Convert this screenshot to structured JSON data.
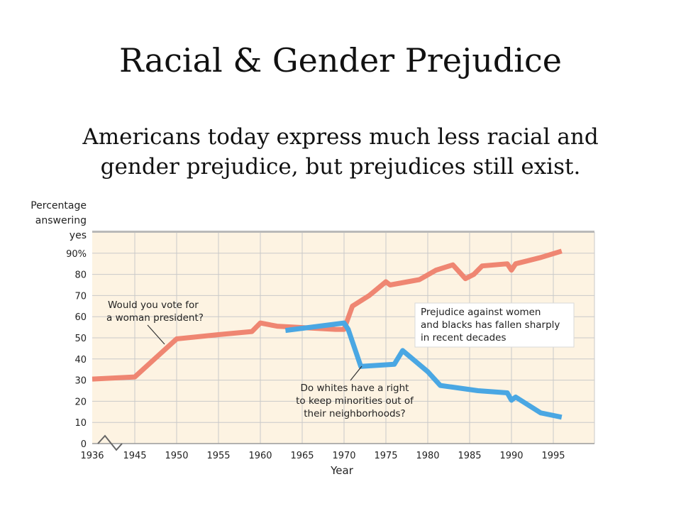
{
  "slide": {
    "title": "Racial & Gender Prejudice",
    "subtitle_lines": [
      "Americans today express much less racial and",
      "gender prejudice, but prejudices still exist."
    ]
  },
  "chart_data": {
    "type": "line",
    "ylabel_lines": [
      "Percentage",
      "answering",
      "yes"
    ],
    "xlabel": "Year",
    "x_ticks": [
      "1936",
      "1945",
      "1950",
      "1955",
      "1960",
      "1965",
      "1970",
      "1975",
      "1980",
      "1985",
      "1990",
      "1995"
    ],
    "y_ticks": [
      "0",
      "10",
      "20",
      "30",
      "40",
      "50",
      "60",
      "70",
      "80",
      "90%"
    ],
    "ylim": [
      0,
      100
    ],
    "xlim": [
      1935,
      2000
    ],
    "grid": true,
    "colors": {
      "background": "#fdf3e2",
      "grid": "#c9c9c9"
    },
    "series": [
      {
        "color": "#ef8672",
        "points": [
          [
            1936,
            30.5
          ],
          [
            1945,
            31.5
          ],
          [
            1950,
            49.5
          ],
          [
            1955,
            51.5
          ],
          [
            1959,
            53
          ],
          [
            1960,
            57
          ],
          [
            1962,
            55.5
          ],
          [
            1969,
            54
          ],
          [
            1970,
            54
          ],
          [
            1971,
            65
          ],
          [
            1973,
            70
          ],
          [
            1975,
            76.5
          ],
          [
            1975.5,
            75
          ],
          [
            1979,
            77.5
          ],
          [
            1981,
            82
          ],
          [
            1983,
            84.5
          ],
          [
            1984.5,
            78
          ],
          [
            1985.5,
            80
          ],
          [
            1986.5,
            84
          ],
          [
            1989.5,
            85
          ],
          [
            1990,
            82
          ],
          [
            1990.5,
            85
          ],
          [
            1993.5,
            88
          ],
          [
            1996,
            91
          ]
        ]
      },
      {
        "color": "#4aa7e3",
        "points": [
          [
            1963,
            53.5
          ],
          [
            1970,
            57
          ],
          [
            1970.5,
            54
          ],
          [
            1972,
            36.5
          ],
          [
            1976,
            37.5
          ],
          [
            1977,
            44
          ],
          [
            1980,
            34
          ],
          [
            1981.5,
            27.5
          ],
          [
            1986,
            25
          ],
          [
            1989.5,
            24
          ],
          [
            1990,
            20.5
          ],
          [
            1990.5,
            22
          ],
          [
            1993.5,
            14.5
          ],
          [
            1996,
            12.5
          ]
        ]
      }
    ],
    "annotations": [
      {
        "lines": [
          "Would you vote for",
          "a woman president?"
        ]
      },
      {
        "lines": [
          "Do whites have a right",
          "to keep minorities out of",
          "their neighborhoods?"
        ]
      },
      {
        "lines": [
          "Prejudice against women",
          "and blacks has fallen sharply",
          "in recent decades"
        ]
      }
    ]
  }
}
